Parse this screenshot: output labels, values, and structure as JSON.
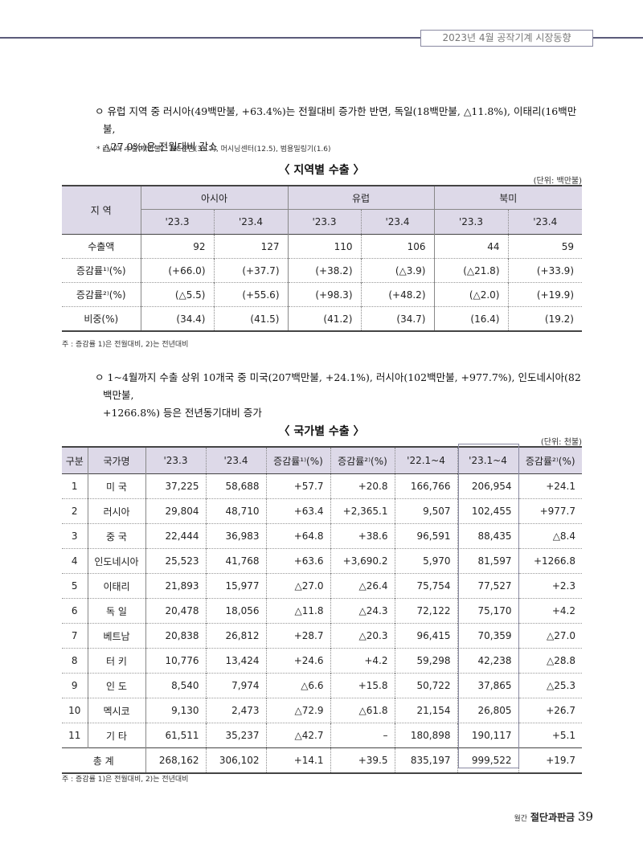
{
  "header": {
    "title": "2023년 4월 공작기계 시장동향"
  },
  "para1": {
    "bullet": "ㅇ",
    "line1": "유럽 지역 중 러시아(49백만불, +63.4%)는 전월대비 증가한 반면, 독일(18백만불, △11.8%), 이태리(16백만불,",
    "line2": "△27.0%)은 전월대비 감소",
    "note": "* 러시아 수출(백만불) : NC선반(31.7), 머시닝센터(12.5), 범용밀링기(1.6)"
  },
  "table1": {
    "caption": "〈 지역별 수출 〉",
    "unit": "(단위: 백만불)",
    "region_header": "지 역",
    "groups": [
      "아시아",
      "유럽",
      "북미"
    ],
    "periods": [
      "'23.3",
      "'23.4",
      "'23.3",
      "'23.4",
      "'23.3",
      "'23.4"
    ],
    "rows": [
      {
        "label": "수출액",
        "values": [
          "92",
          "127",
          "110",
          "106",
          "44",
          "59"
        ]
      },
      {
        "label": "증감률¹⁾(%)",
        "values": [
          "(+66.0)",
          "(+37.7)",
          "(+38.2)",
          "(△3.9)",
          "(△21.8)",
          "(+33.9)"
        ]
      },
      {
        "label": "증감률²⁾(%)",
        "values": [
          "(△5.5)",
          "(+55.6)",
          "(+98.3)",
          "(+48.2)",
          "(△2.0)",
          "(+19.9)"
        ]
      },
      {
        "label": "비중(%)",
        "values": [
          "(34.4)",
          "(41.5)",
          "(41.2)",
          "(34.7)",
          "(16.4)",
          "(19.2)"
        ]
      }
    ],
    "footnote": "주 : 증감률 1)은 전월대비, 2)는 전년대비"
  },
  "para2": {
    "bullet": "ㅇ",
    "line1": "1~4월까지 수출 상위 10개국 중 미국(207백만불, +24.1%), 러시아(102백만불, +977.7%), 인도네시아(82백만불,",
    "line2": "+1266.8%) 등은 전년동기대비 증가"
  },
  "table2": {
    "caption": "〈 국가별 수출 〉",
    "unit": "(단위: 천불)",
    "headers": [
      "구분",
      "국가명",
      "'23.3",
      "'23.4",
      "증감률¹⁾(%)",
      "증감률²⁾(%)",
      "'22.1~4",
      "'23.1~4",
      "증감률²⁾(%)"
    ],
    "rows": [
      [
        "1",
        "미 국",
        "37,225",
        "58,688",
        "+57.7",
        "+20.8",
        "166,766",
        "206,954",
        "+24.1"
      ],
      [
        "2",
        "러시아",
        "29,804",
        "48,710",
        "+63.4",
        "+2,365.1",
        "9,507",
        "102,455",
        "+977.7"
      ],
      [
        "3",
        "중 국",
        "22,444",
        "36,983",
        "+64.8",
        "+38.6",
        "96,591",
        "88,435",
        "△8.4"
      ],
      [
        "4",
        "인도네시아",
        "25,523",
        "41,768",
        "+63.6",
        "+3,690.2",
        "5,970",
        "81,597",
        "+1266.8"
      ],
      [
        "5",
        "이태리",
        "21,893",
        "15,977",
        "△27.0",
        "△26.4",
        "75,754",
        "77,527",
        "+2.3"
      ],
      [
        "6",
        "독 일",
        "20,478",
        "18,056",
        "△11.8",
        "△24.3",
        "72,122",
        "75,170",
        "+4.2"
      ],
      [
        "7",
        "베트남",
        "20,838",
        "26,812",
        "+28.7",
        "△20.3",
        "96,415",
        "70,359",
        "△27.0"
      ],
      [
        "8",
        "터 키",
        "10,776",
        "13,424",
        "+24.6",
        "+4.2",
        "59,298",
        "42,238",
        "△28.8"
      ],
      [
        "9",
        "인 도",
        "8,540",
        "7,974",
        "△6.6",
        "+15.8",
        "50,722",
        "37,865",
        "△25.3"
      ],
      [
        "10",
        "멕시코",
        "9,130",
        "2,473",
        "△72.9",
        "△61.8",
        "21,154",
        "26,805",
        "+26.7"
      ],
      [
        "11",
        "기 타",
        "61,511",
        "35,237",
        "△42.7",
        "–",
        "180,898",
        "190,117",
        "+5.1"
      ]
    ],
    "total": {
      "label": "총 계",
      "values": [
        "268,162",
        "306,102",
        "+14.1",
        "+39.5",
        "835,197",
        "999,522",
        "+19.7"
      ]
    },
    "footnote": "주 : 증감률 1)은 전월대비, 2)는 전년대비"
  },
  "footer": {
    "magazine_prefix": "월간",
    "magazine_name": "절단과판금",
    "page_number": "39"
  }
}
